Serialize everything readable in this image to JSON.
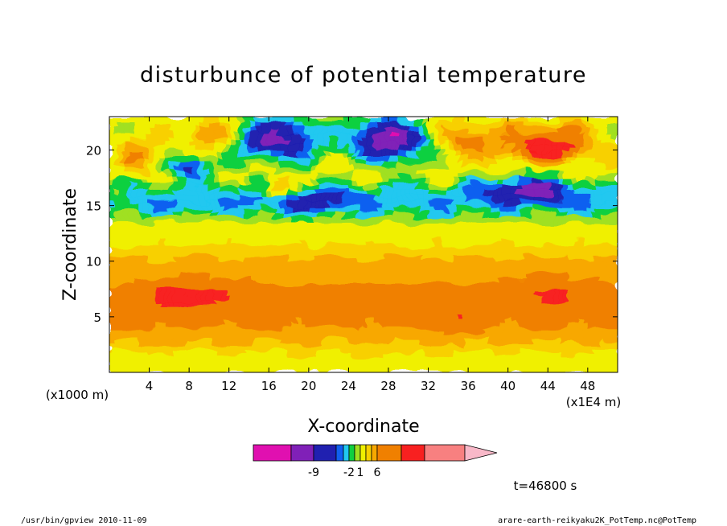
{
  "chart_data": {
    "type": "heatmap",
    "title": "disturbunce of potential temperature",
    "xlabel": "X-coordinate",
    "ylabel": "Z-coordinate",
    "x_unit": "(x1E4 m)",
    "z_unit": "(x1000 m)",
    "xlim": [
      0,
      51
    ],
    "ylim": [
      0,
      23
    ],
    "x_ticks": [
      "4",
      "8",
      "12",
      "16",
      "20",
      "24",
      "28",
      "32",
      "36",
      "40",
      "44",
      "48"
    ],
    "y_ticks": [
      "5",
      "10",
      "15",
      "20"
    ],
    "time_label": "t=46800 s",
    "colorbar": {
      "colors": [
        "#e010b0",
        "#8020b8",
        "#2020b0",
        "#1060f0",
        "#20c8f0",
        "#10d040",
        "#a0e020",
        "#f0f000",
        "#f8d000",
        "#f8a800",
        "#f08000",
        "#f82020",
        "#f88080",
        "#f8b8c8"
      ],
      "tick_labels": [
        "-9",
        "-2",
        "1",
        "6"
      ]
    },
    "field_bands": [
      {
        "zmin": 0,
        "zmax": 2,
        "level": "yellow",
        "approx_value": 1
      },
      {
        "zmin": 2,
        "zmax": 4,
        "level": "light-orange",
        "approx_value": 2
      },
      {
        "zmin": 4,
        "zmax": 9,
        "level": "orange",
        "approx_value": 4
      },
      {
        "zmin": 9,
        "zmax": 11.5,
        "level": "light-orange",
        "approx_value": 2
      },
      {
        "zmin": 11.5,
        "zmax": 14,
        "level": "yellow",
        "approx_value": 1
      },
      {
        "zmin": 14,
        "zmax": 17,
        "level": "green",
        "approx_value": -1
      },
      {
        "zmin": 17,
        "zmax": 23,
        "level": "mixed",
        "approx_value": 0
      }
    ],
    "anomalies": [
      {
        "x": 17,
        "z": 21,
        "value": -8
      },
      {
        "x": 28,
        "z": 21,
        "value": -9
      },
      {
        "x": 44,
        "z": 20.5,
        "value": 6
      },
      {
        "x": 42,
        "z": 16.5,
        "value": -4
      },
      {
        "x": 8,
        "z": 7,
        "value": 5
      },
      {
        "x": 44,
        "z": 7.5,
        "value": 5
      }
    ]
  },
  "footer": {
    "left": "/usr/bin/gpview   2010-11-09",
    "right": "arare-earth-reikyaku2K_PotTemp.nc@PotTemp"
  }
}
